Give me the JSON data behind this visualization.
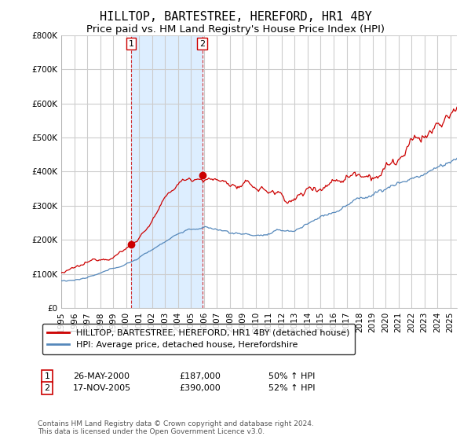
{
  "title": "HILLTOP, BARTESTREE, HEREFORD, HR1 4BY",
  "subtitle": "Price paid vs. HM Land Registry's House Price Index (HPI)",
  "ylim": [
    0,
    800000
  ],
  "yticks": [
    0,
    100000,
    200000,
    300000,
    400000,
    500000,
    600000,
    700000,
    800000
  ],
  "ytick_labels": [
    "£0",
    "£100K",
    "£200K",
    "£300K",
    "£400K",
    "£500K",
    "£600K",
    "£700K",
    "£800K"
  ],
  "xlim_start": 1995.0,
  "xlim_end": 2025.5,
  "fig_bg_color": "#ffffff",
  "plot_bg_color": "#ffffff",
  "shade_color": "#ddeeff",
  "grid_color": "#cccccc",
  "red_line_color": "#cc0000",
  "blue_line_color": "#5588bb",
  "transaction1_date": 2000.38,
  "transaction1_price": 187000,
  "transaction2_date": 2005.88,
  "transaction2_price": 390000,
  "legend_label_red": "HILLTOP, BARTESTREE, HEREFORD, HR1 4BY (detached house)",
  "legend_label_blue": "HPI: Average price, detached house, Herefordshire",
  "annotation1_date": "26-MAY-2000",
  "annotation1_price": "£187,000",
  "annotation1_hpi": "50% ↑ HPI",
  "annotation2_date": "17-NOV-2005",
  "annotation2_price": "£390,000",
  "annotation2_hpi": "52% ↑ HPI",
  "footer": "Contains HM Land Registry data © Crown copyright and database right 2024.\nThis data is licensed under the Open Government Licence v3.0.",
  "title_fontsize": 11,
  "subtitle_fontsize": 9.5,
  "tick_fontsize": 7.5,
  "legend_fontsize": 8,
  "annotation_fontsize": 8,
  "footer_fontsize": 6.5
}
